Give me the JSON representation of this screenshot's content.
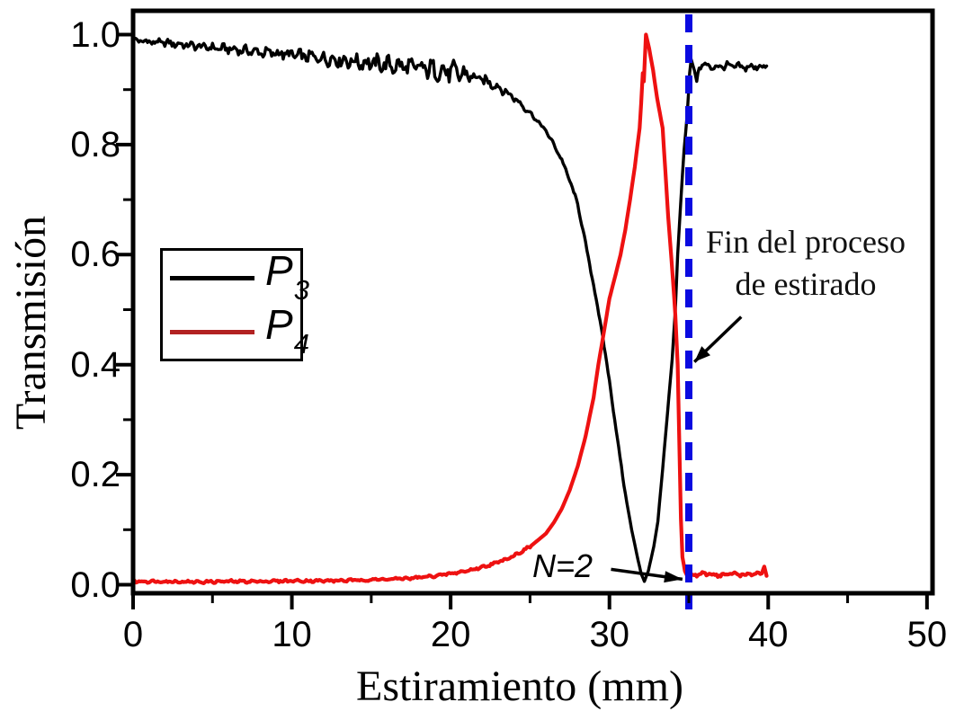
{
  "chart_data": {
    "type": "line",
    "title": "",
    "xlabel": "Estiramiento (mm)",
    "ylabel": "Transmisión",
    "xlim": [
      0,
      50
    ],
    "ylim": [
      0.0,
      1.0
    ],
    "grid": false,
    "x_ticks_major": [
      0,
      10,
      20,
      30,
      40,
      50
    ],
    "x_tick_labels": [
      "0",
      "10",
      "20",
      "30",
      "40",
      "50"
    ],
    "x_ticks_minor": [
      5,
      15,
      25,
      35,
      45
    ],
    "y_ticks_major": [
      1.0,
      0.8,
      0.6,
      0.4,
      0.2,
      0.0
    ],
    "y_tick_labels": [
      "1.0",
      "0.8",
      "0.6",
      "0.4",
      "0.2",
      "0.0"
    ],
    "y_ticks_minor": [
      0.9,
      0.7,
      0.5,
      0.3,
      0.1
    ],
    "colors": {
      "axis": "#000000",
      "p3_curve": "#000000",
      "p4_curve": "#ee1111",
      "legend_p4_swatch": "#b22222",
      "marker_line": "#0a0ae0"
    },
    "legend": {
      "position": "center-left",
      "entries": [
        {
          "symbol": "P",
          "subscript": "3",
          "series": "P3",
          "color": "#000000"
        },
        {
          "symbol": "P",
          "subscript": "4",
          "series": "P4",
          "color": "#b22222"
        }
      ]
    },
    "marker_line": {
      "x": 35,
      "style": "dashed",
      "color": "#0a0ae0"
    },
    "annotations": [
      {
        "id": "end-of-drawing",
        "line1": "Fin del proceso",
        "line2": "de estirado",
        "arrow_from": [
          38.3,
          0.487
        ],
        "arrow_to": [
          35.35,
          0.405
        ]
      },
      {
        "id": "n2",
        "text": "N=2",
        "leader_from": [
          30.1,
          0.028
        ],
        "leader_to": [
          34.6,
          0.01
        ]
      }
    ],
    "series": [
      {
        "name": "P3",
        "color": "#000000",
        "width": 3.4,
        "points": [
          [
            0,
            0.99
          ],
          [
            1,
            0.987
          ],
          [
            2,
            0.985
          ],
          [
            3,
            0.982
          ],
          [
            4,
            0.979
          ],
          [
            5,
            0.976
          ],
          [
            6,
            0.974
          ],
          [
            7,
            0.971
          ],
          [
            8,
            0.968
          ],
          [
            9,
            0.966
          ],
          [
            10,
            0.963
          ],
          [
            11,
            0.96
          ],
          [
            12,
            0.957
          ],
          [
            13,
            0.954
          ],
          [
            14,
            0.951
          ],
          [
            15,
            0.948
          ],
          [
            16,
            0.945
          ],
          [
            17,
            0.942
          ],
          [
            18,
            0.939
          ],
          [
            19,
            0.936
          ],
          [
            20,
            0.932
          ],
          [
            21,
            0.926
          ],
          [
            22,
            0.918
          ],
          [
            23,
            0.905
          ],
          [
            24,
            0.885
          ],
          [
            25,
            0.858
          ],
          [
            26,
            0.825
          ],
          [
            26.5,
            0.8
          ],
          [
            27,
            0.772
          ],
          [
            27.5,
            0.735
          ],
          [
            28,
            0.692
          ],
          [
            28.5,
            0.62
          ],
          [
            29,
            0.545
          ],
          [
            29.5,
            0.465
          ],
          [
            30,
            0.37
          ],
          [
            30.5,
            0.265
          ],
          [
            31,
            0.165
          ],
          [
            31.4,
            0.1
          ],
          [
            31.8,
            0.045
          ],
          [
            32.0,
            0.02
          ],
          [
            32.2,
            0.006
          ],
          [
            32.45,
            0.025
          ],
          [
            32.8,
            0.07
          ],
          [
            33.05,
            0.115
          ],
          [
            33.35,
            0.21
          ],
          [
            33.65,
            0.31
          ],
          [
            33.95,
            0.41
          ],
          [
            34.15,
            0.5
          ],
          [
            34.3,
            0.6
          ],
          [
            34.5,
            0.7
          ],
          [
            34.7,
            0.79
          ],
          [
            34.9,
            0.855
          ],
          [
            35.05,
            0.93
          ],
          [
            35.15,
            0.955
          ],
          [
            35.35,
            0.935
          ],
          [
            35.5,
            0.915
          ],
          [
            35.65,
            0.945
          ],
          [
            36.5,
            0.941
          ],
          [
            37.5,
            0.943
          ],
          [
            38.5,
            0.94
          ],
          [
            39.9,
            0.943
          ]
        ],
        "noise": [
          {
            "from": 0,
            "to": 6,
            "a0": 0.005,
            "a1": 0.007
          },
          {
            "from": 6,
            "to": 13,
            "a0": 0.007,
            "a1": 0.011
          },
          {
            "from": 13,
            "to": 21,
            "a0": 0.012,
            "a1": 0.017
          },
          {
            "from": 21,
            "to": 25,
            "a0": 0.01,
            "a1": 0.004
          },
          {
            "from": 25,
            "to": 31,
            "a0": 0.003,
            "a1": 0.002
          },
          {
            "from": 35.65,
            "to": 39.9,
            "a0": 0.006,
            "a1": 0.006
          }
        ]
      },
      {
        "name": "P4",
        "color": "#ee1111",
        "width": 4.2,
        "points": [
          [
            0,
            0.006
          ],
          [
            2,
            0.006
          ],
          [
            4,
            0.005
          ],
          [
            6,
            0.006
          ],
          [
            8,
            0.006
          ],
          [
            10,
            0.007
          ],
          [
            12,
            0.007
          ],
          [
            14,
            0.008
          ],
          [
            16,
            0.01
          ],
          [
            17,
            0.011
          ],
          [
            18,
            0.013
          ],
          [
            19,
            0.016
          ],
          [
            20,
            0.02
          ],
          [
            21,
            0.025
          ],
          [
            22,
            0.032
          ],
          [
            23,
            0.041
          ],
          [
            24,
            0.053
          ],
          [
            25,
            0.069
          ],
          [
            26,
            0.093
          ],
          [
            26.5,
            0.113
          ],
          [
            27,
            0.138
          ],
          [
            27.5,
            0.172
          ],
          [
            28,
            0.215
          ],
          [
            28.5,
            0.27
          ],
          [
            29,
            0.34
          ],
          [
            29.3,
            0.4
          ],
          [
            29.6,
            0.45
          ],
          [
            30,
            0.52
          ],
          [
            30.4,
            0.565
          ],
          [
            30.7,
            0.6
          ],
          [
            31.0,
            0.645
          ],
          [
            31.3,
            0.7
          ],
          [
            31.6,
            0.76
          ],
          [
            31.9,
            0.83
          ],
          [
            32.0,
            0.875
          ],
          [
            32.1,
            0.93
          ],
          [
            32.17,
            0.915
          ],
          [
            32.3,
            1.0
          ],
          [
            32.5,
            0.975
          ],
          [
            32.75,
            0.935
          ],
          [
            33.0,
            0.885
          ],
          [
            33.35,
            0.83
          ],
          [
            33.7,
            0.67
          ],
          [
            34.0,
            0.555
          ],
          [
            34.15,
            0.49
          ],
          [
            34.3,
            0.4
          ],
          [
            34.4,
            0.26
          ],
          [
            34.5,
            0.12
          ],
          [
            34.6,
            0.05
          ],
          [
            34.75,
            0.025
          ],
          [
            34.9,
            0.016
          ],
          [
            35.5,
            0.018
          ],
          [
            36.2,
            0.02
          ],
          [
            37.0,
            0.017
          ],
          [
            37.8,
            0.02
          ],
          [
            38.6,
            0.018
          ],
          [
            39.3,
            0.02
          ],
          [
            39.6,
            0.021
          ],
          [
            39.75,
            0.033
          ],
          [
            39.9,
            0.016
          ]
        ],
        "noise": [
          {
            "from": 0,
            "to": 25,
            "a0": 0.002,
            "a1": 0.002
          },
          {
            "from": 35.0,
            "to": 39.6,
            "a0": 0.003,
            "a1": 0.003
          }
        ]
      }
    ]
  }
}
